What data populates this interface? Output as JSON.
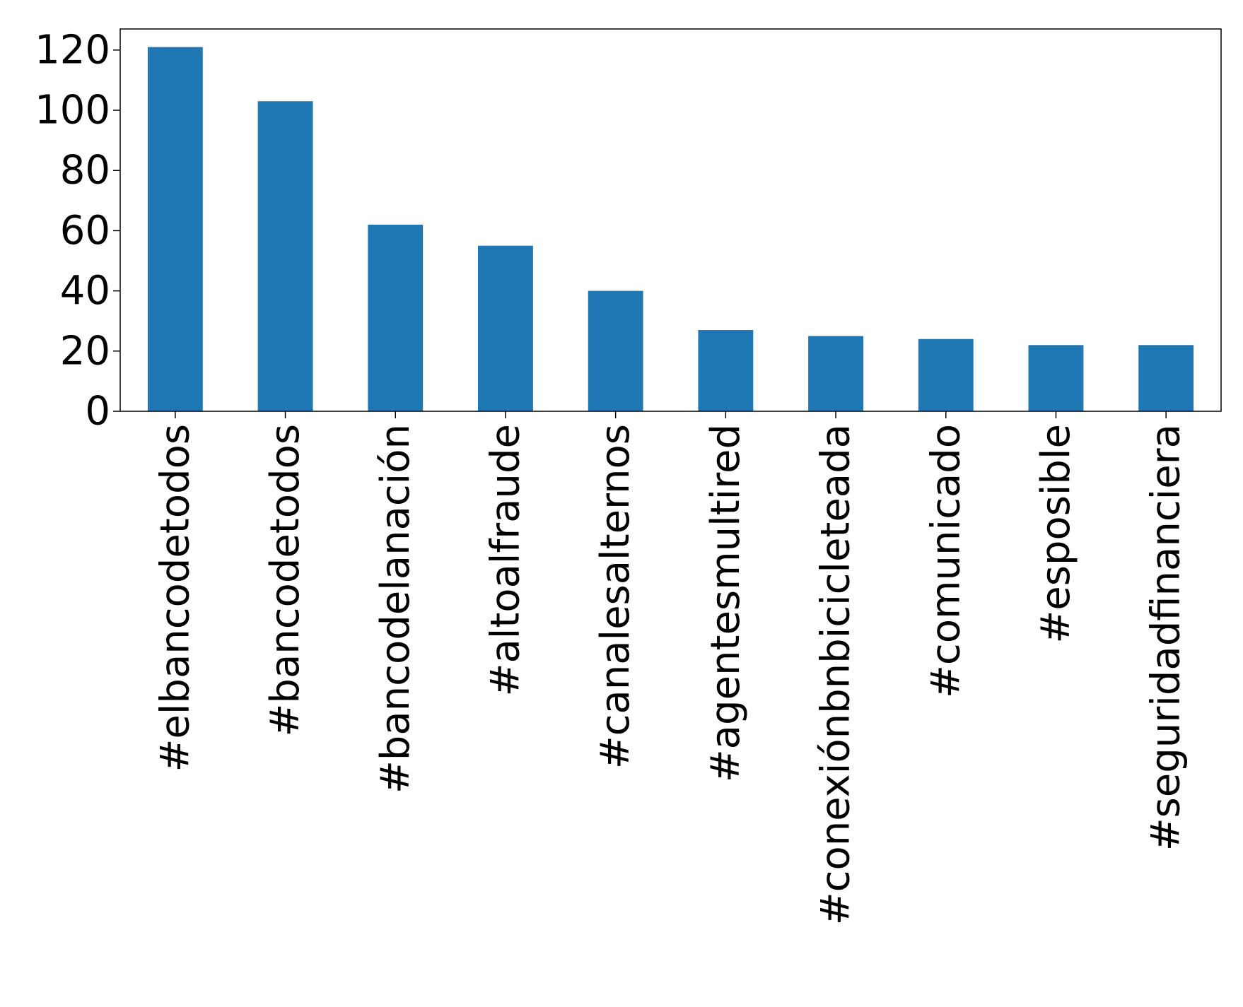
{
  "chart_data": {
    "type": "bar",
    "title": "",
    "xlabel": "",
    "ylabel": "",
    "categories": [
      "#elbancodetodos",
      "#bancodetodos",
      "#bancodelanación",
      "#altoalfraude",
      "#canalesalternos",
      "#agentesmultired",
      "#conexiónbnbicicleteada",
      "#comunicado",
      "#esposible",
      "#seguridadfinanciera"
    ],
    "values": [
      121,
      103,
      62,
      55,
      40,
      27,
      25,
      24,
      22,
      22
    ],
    "ylim": [
      0,
      127
    ],
    "yticks": [
      0,
      20,
      40,
      60,
      80,
      100,
      120
    ],
    "bar_color": "#1f77b4",
    "grid": false,
    "legend": "none"
  }
}
